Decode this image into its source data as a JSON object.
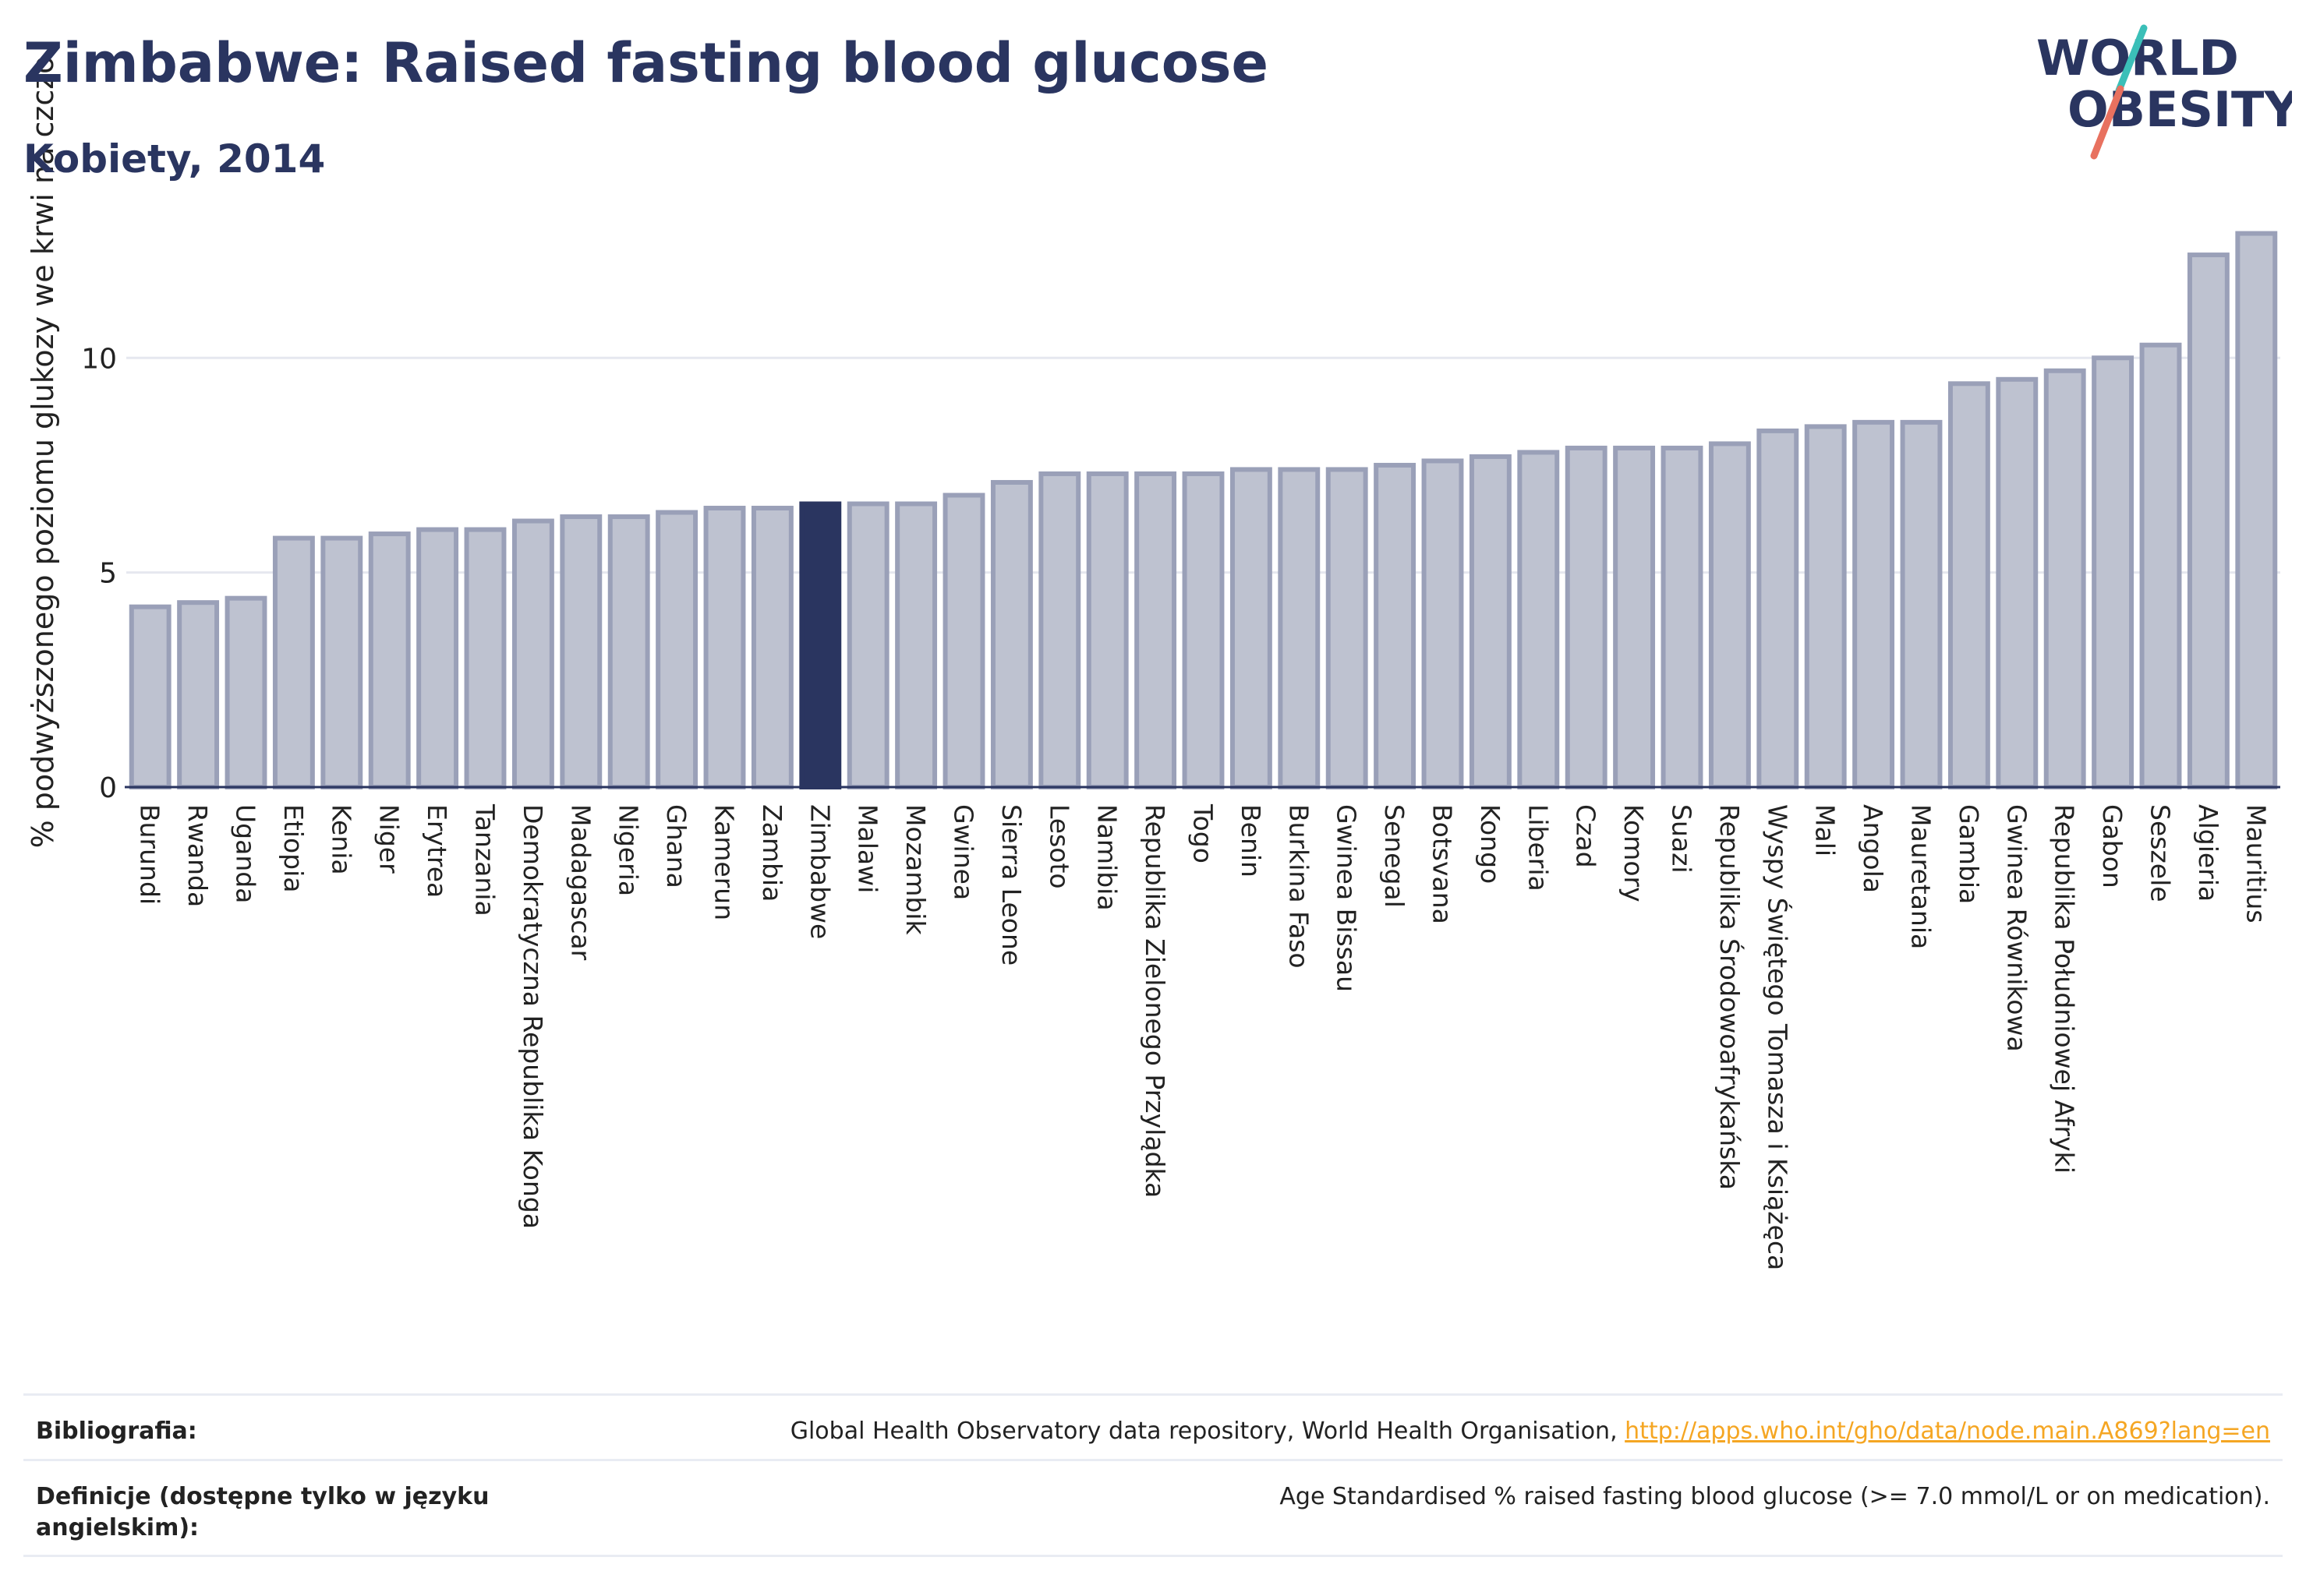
{
  "header": {
    "title": "Zimbabwe: Raised fasting blood glucose",
    "subtitle": "Kobiety, 2014"
  },
  "logo": {
    "line1": "WORLD",
    "line2": "OBESITY"
  },
  "colors": {
    "bar": "#bec2d0",
    "bar_stroke": "#9aa0b8",
    "highlight": "#2a3560",
    "text": "#2a3560",
    "logo_slash_teal": "#3bbfb8",
    "logo_slash_coral": "#e8715f",
    "link": "#f5a623"
  },
  "chart_data": {
    "type": "bar",
    "title": "Zimbabwe: Raised fasting blood glucose",
    "subtitle": "Kobiety, 2014",
    "ylabel": "% podwyższonego poziomu glukozy we krwi na czczo",
    "xlabel": "",
    "ylim": [
      0,
      13.4
    ],
    "yticks": [
      0,
      5,
      10
    ],
    "grid": true,
    "highlight": "Zimbabwe",
    "categories": [
      "Burundi",
      "Rwanda",
      "Uganda",
      "Etiopia",
      "Kenia",
      "Niger",
      "Erytrea",
      "Tanzania",
      "Demokratyczna Republika Konga",
      "Madagascar",
      "Nigeria",
      "Ghana",
      "Kamerun",
      "Zambia",
      "Zimbabwe",
      "Malawi",
      "Mozambik",
      "Gwinea",
      "Sierra Leone",
      "Lesoto",
      "Namibia",
      "Republika Zielonego Przylądka",
      "Togo",
      "Benin",
      "Burkina Faso",
      "Gwinea Bissau",
      "Senegal",
      "Botsvana",
      "Kongo",
      "Liberia",
      "Czad",
      "Komory",
      "Suazi",
      "Republika Środowoafrykańska",
      "Wyspy Świętego Tomasza i Książęca",
      "Mali",
      "Angola",
      "Mauretania",
      "Gambia",
      "Gwinea Równikowa",
      "Republika Południowej Afryki",
      "Gabon",
      "Seszele",
      "Algieria",
      "Mauritius"
    ],
    "values": [
      4.2,
      4.3,
      4.4,
      5.8,
      5.8,
      5.9,
      6.0,
      6.0,
      6.2,
      6.3,
      6.3,
      6.4,
      6.5,
      6.5,
      6.6,
      6.6,
      6.6,
      6.8,
      7.1,
      7.3,
      7.3,
      7.3,
      7.3,
      7.4,
      7.4,
      7.4,
      7.5,
      7.6,
      7.7,
      7.8,
      7.9,
      7.9,
      7.9,
      8.0,
      8.3,
      8.4,
      8.5,
      8.5,
      9.4,
      9.5,
      9.7,
      10.0,
      10.3,
      12.4,
      12.9
    ]
  },
  "references": [
    {
      "label": "Bibliografia:",
      "text": "Global Health Observatory data repository, World Health Organisation, ",
      "link": "http://apps.who.int/gho/data/node.main.A869?lang=en"
    },
    {
      "label": "Definicje (dostępne tylko w języku angielskim):",
      "text": "Age Standardised % raised fasting blood glucose (>= 7.0 mmol/L or on medication)."
    }
  ]
}
